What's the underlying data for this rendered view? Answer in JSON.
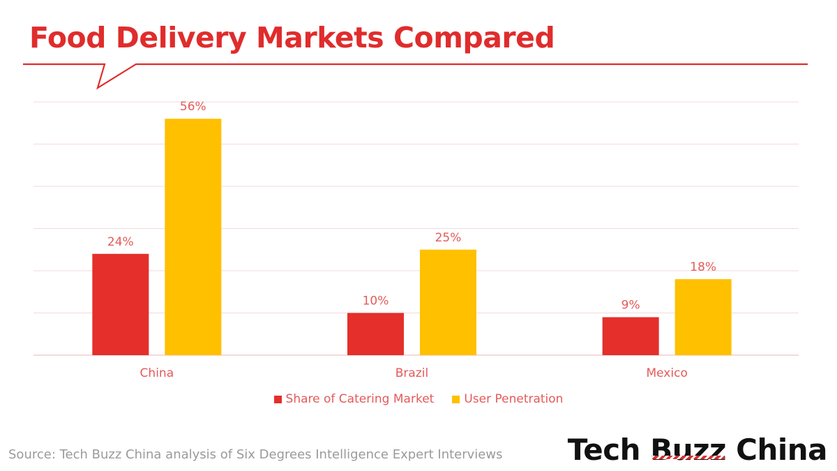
{
  "title": "Food Delivery Markets Compared",
  "source": "Source: Tech Buzz China analysis of Six Degrees Intelligence Expert Interviews",
  "brand": {
    "word1": "Tech",
    "word2": "Buzz",
    "word3": "China"
  },
  "colors": {
    "title": "#e02c2c",
    "series_red": "#e42f2a",
    "series_yellow": "#ffc000",
    "grid": "#f3d9d9",
    "label": "#e35a5a"
  },
  "chart_data": {
    "type": "bar",
    "title": "Food Delivery Markets Compared",
    "categories": [
      "China",
      "Brazil",
      "Mexico"
    ],
    "series": [
      {
        "name": "Share of Catering Market",
        "values": [
          24,
          10,
          9
        ],
        "labels": [
          "24%",
          "10%",
          "9%"
        ]
      },
      {
        "name": "User Penetration",
        "values": [
          56,
          25,
          18
        ],
        "labels": [
          "56%",
          "25%",
          "18%"
        ]
      }
    ],
    "ylim": [
      0,
      60
    ],
    "grid": true,
    "legend_position": "bottom-center",
    "xlabel": "",
    "ylabel": ""
  }
}
